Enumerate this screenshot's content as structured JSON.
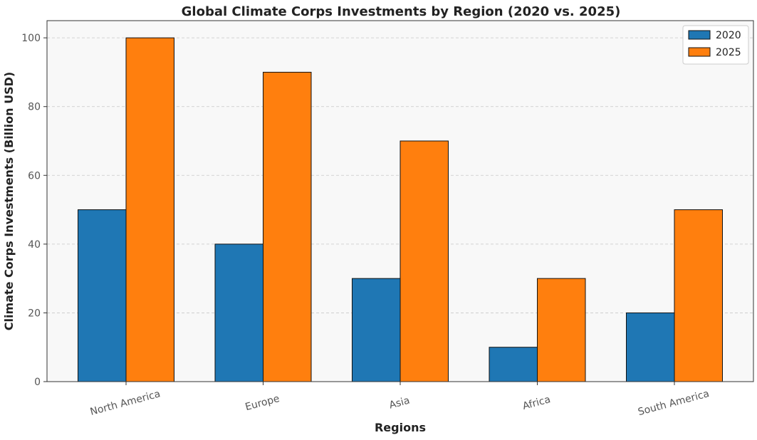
{
  "chart_data": {
    "type": "bar",
    "title": "Global Climate Corps Investments by Region (2020 vs. 2025)",
    "xlabel": "Regions",
    "ylabel": "Climate Corps Investments (Billion USD)",
    "categories": [
      "North America",
      "Europe",
      "Asia",
      "Africa",
      "South America"
    ],
    "series": [
      {
        "name": "2020",
        "values": [
          50,
          40,
          30,
          10,
          20
        ],
        "color": "#1f77b4"
      },
      {
        "name": "2025",
        "values": [
          100,
          90,
          70,
          30,
          50
        ],
        "color": "#ff7f0e"
      }
    ],
    "ylim": [
      0,
      105
    ],
    "yticks": [
      0,
      20,
      40,
      60,
      80,
      100
    ],
    "grid": "y-dashed",
    "legend_position": "top-right",
    "xtick_rotation": "rotated-15",
    "plot_background": "#f8f8f8"
  }
}
